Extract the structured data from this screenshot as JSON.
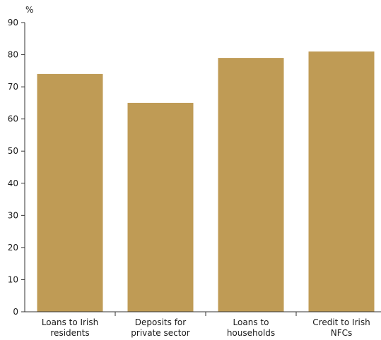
{
  "chart_data": {
    "type": "bar",
    "unit_label": "%",
    "title": "",
    "xlabel": "",
    "ylabel": "%",
    "ylim": [
      0,
      90
    ],
    "yticks": [
      0,
      10,
      20,
      30,
      40,
      50,
      60,
      70,
      80,
      90
    ],
    "grid": false,
    "legend": "none",
    "bar_color": "#bf9b55",
    "categories": [
      [
        "Loans to Irish",
        "residents"
      ],
      [
        "Deposits for",
        "private sector"
      ],
      [
        "Loans to",
        "households"
      ],
      [
        "Credit to Irish",
        "NFCs"
      ]
    ],
    "values": [
      74,
      65,
      79,
      81
    ]
  }
}
